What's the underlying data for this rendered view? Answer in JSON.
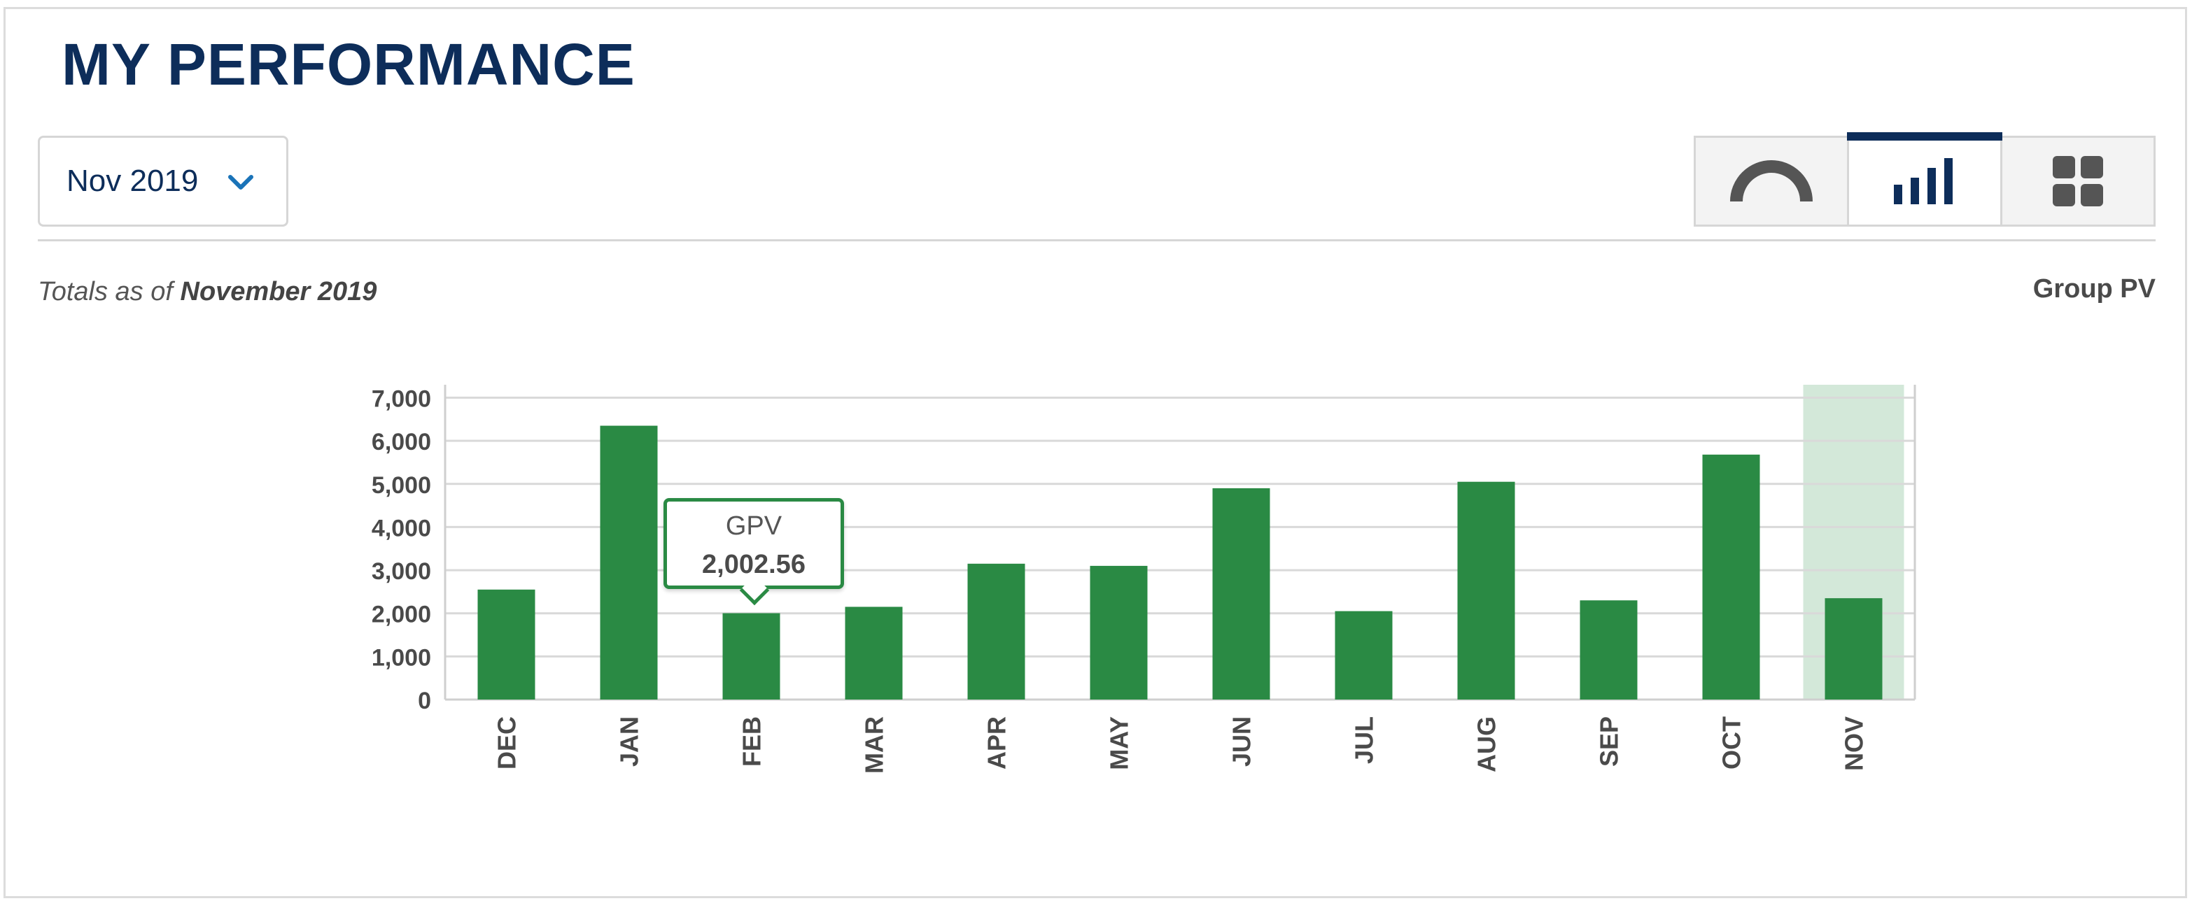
{
  "header": {
    "title": "MY PERFORMANCE"
  },
  "month_select": {
    "value": "Nov 2019",
    "icon": "chevron-down-icon"
  },
  "view_toggle": [
    {
      "name": "gauge-view",
      "icon": "gauge-icon",
      "active": false
    },
    {
      "name": "bar-view",
      "icon": "bar-chart-icon",
      "active": true
    },
    {
      "name": "grid-view",
      "icon": "grid-icon",
      "active": false
    }
  ],
  "totals": {
    "prefix": "Totals as of",
    "date": "November 2019"
  },
  "series_label": "Group PV",
  "tooltip": {
    "label": "GPV",
    "value": "2,002.56"
  },
  "colors": {
    "bar": "#2a8a44",
    "highlight": "#d3e8d9",
    "title": "#0d2d5a",
    "grid": "#d9d9d9"
  },
  "chart_data": {
    "type": "bar",
    "categories": [
      "DEC",
      "JAN",
      "FEB",
      "MAR",
      "APR",
      "MAY",
      "JUN",
      "JUL",
      "AUG",
      "SEP",
      "OCT",
      "NOV"
    ],
    "values": [
      2550,
      6350,
      2002.56,
      2150,
      3150,
      3100,
      4900,
      2050,
      5050,
      2300,
      5680,
      2350
    ],
    "ylim": [
      0,
      7300
    ],
    "yticks": [
      0,
      1000,
      2000,
      3000,
      4000,
      5000,
      6000,
      7000
    ],
    "ytick_labels": [
      "0",
      "1,000",
      "2,000",
      "3,000",
      "4,000",
      "5,000",
      "6,000",
      "7,000"
    ],
    "highlighted_category": "NOV",
    "tooltip_category": "FEB",
    "grid": true
  }
}
